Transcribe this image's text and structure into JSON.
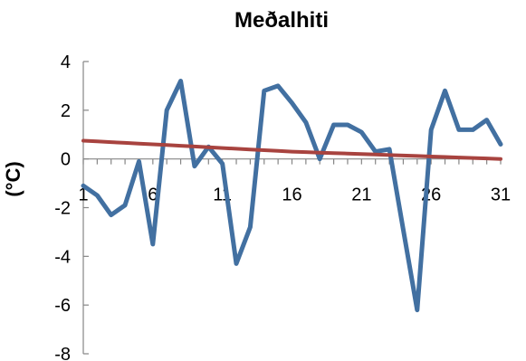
{
  "chart_data": {
    "type": "line",
    "title": "Meðalhiti",
    "xlabel": "",
    "ylabel": "(°C)",
    "x": [
      1,
      2,
      3,
      4,
      5,
      6,
      7,
      8,
      9,
      10,
      11,
      12,
      13,
      14,
      15,
      16,
      17,
      18,
      19,
      20,
      21,
      22,
      23,
      24,
      25,
      26,
      27,
      28,
      29,
      30,
      31
    ],
    "xlim": [
      1,
      31
    ],
    "xticks": [
      1,
      6,
      11,
      16,
      21,
      26,
      31
    ],
    "ylim": [
      -8,
      4
    ],
    "yticks": [
      -8,
      -6,
      -4,
      -2,
      0,
      2,
      4
    ],
    "grid": false,
    "legend": "none",
    "series": [
      {
        "values": [
          -1.1,
          -1.5,
          -2.3,
          -1.9,
          -0.1,
          -3.5,
          2.0,
          3.2,
          -0.3,
          0.5,
          -0.2,
          -4.3,
          -2.8,
          2.8,
          3.0,
          2.3,
          1.5,
          0.0,
          1.4,
          1.4,
          1.1,
          0.3,
          0.4,
          -2.9,
          -6.2,
          1.2,
          2.8,
          1.2,
          1.2,
          1.6,
          0.6
        ],
        "color": "#4270A1"
      },
      {
        "values": [
          0.75,
          0.72,
          0.69,
          0.66,
          0.63,
          0.6,
          0.57,
          0.54,
          0.51,
          0.48,
          0.45,
          0.42,
          0.39,
          0.36,
          0.33,
          0.3,
          0.28,
          0.26,
          0.24,
          0.22,
          0.2,
          0.18,
          0.16,
          0.14,
          0.12,
          0.1,
          0.08,
          0.06,
          0.04,
          0.02,
          0.0
        ],
        "color": "#A8433F"
      }
    ]
  }
}
